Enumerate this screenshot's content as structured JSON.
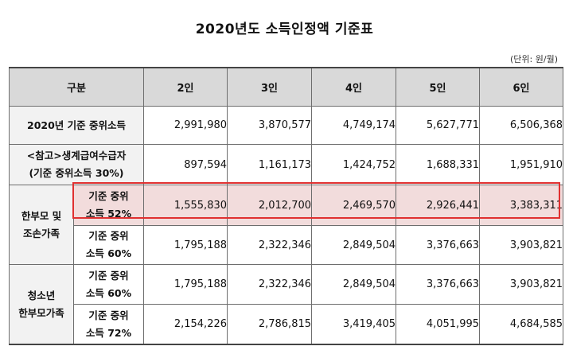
{
  "title": "2020년도 소득인정액 기준표",
  "unit": "(단위: 원/월)",
  "table": {
    "header": [
      "구분",
      "2인",
      "3인",
      "4인",
      "5인",
      "6인"
    ],
    "rows": [
      {
        "label": "2020년 기준 중위소득",
        "values": [
          "2,991,980",
          "3,870,577",
          "4,749,174",
          "5,627,771",
          "6,506,368"
        ]
      },
      {
        "label_line1": "<참고>생계급여수급자",
        "label_line2": "(기준 중위소득 30%)",
        "values": [
          "897,594",
          "1,161,173",
          "1,424,752",
          "1,688,331",
          "1,951,910"
        ]
      }
    ],
    "group1": {
      "label_line1": "한부모 및",
      "label_line2": "조손가족",
      "rows": [
        {
          "sub_line1": "기준 중위",
          "sub_line2": "소득 52%",
          "values": [
            "1,555,830",
            "2,012,700",
            "2,469,570",
            "2,926,441",
            "3,383,311"
          ]
        },
        {
          "sub_line1": "기준 중위",
          "sub_line2": "소득 60%",
          "values": [
            "1,795,188",
            "2,322,346",
            "2,849,504",
            "3,376,663",
            "3,903,821"
          ]
        }
      ]
    },
    "group2": {
      "label_line1": "청소년",
      "label_line2": "한부모가족",
      "rows": [
        {
          "sub_line1": "기준 중위",
          "sub_line2": "소득 60%",
          "values": [
            "1,795,188",
            "2,322,346",
            "2,849,504",
            "3,376,663",
            "3,903,821"
          ]
        },
        {
          "sub_line1": "기준 중위",
          "sub_line2": "소득 72%",
          "values": [
            "2,154,226",
            "2,786,815",
            "3,419,405",
            "4,051,995",
            "4,684,585"
          ]
        }
      ]
    }
  },
  "colors": {
    "header_bg": "#d9d9d9",
    "highlight_bg": "#f2dcdc",
    "highlight_border": "#e03030"
  }
}
